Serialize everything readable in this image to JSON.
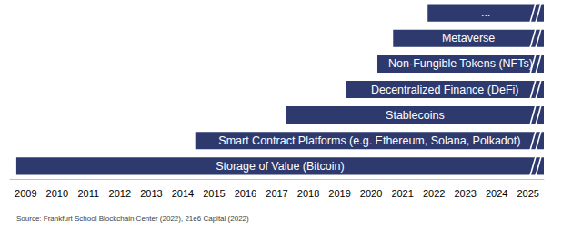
{
  "chart_data": {
    "type": "bar",
    "orientation": "horizontal",
    "categories": [
      "Storage of Value (Bitcoin)",
      "Smart Contract Platforms (e.g. Ethereum, Solana, Polkadot)",
      "Stablecoins",
      "Decentralized Finance (DeFi)",
      "Non-Fungible Tokens (NFTs)",
      "Metaverse",
      "..."
    ],
    "start": [
      2008.7,
      2014.4,
      2017.3,
      2019.2,
      2020.2,
      2020.7,
      2021.8
    ],
    "end": [
      2025.5,
      2025.5,
      2025.5,
      2025.5,
      2025.5,
      2025.5,
      2025.5
    ],
    "color": "#2e3a6e",
    "xlim": [
      2008.5,
      2025.5
    ],
    "xticks": [
      2009,
      2010,
      2011,
      2012,
      2013,
      2014,
      2015,
      2016,
      2017,
      2018,
      2019,
      2020,
      2021,
      2022,
      2023,
      2024,
      2025
    ],
    "grid": false,
    "tick_labels": "x",
    "source": "Source: Frankfurt School Blockchain Center (2022), 21e6 Capital (2022)"
  }
}
